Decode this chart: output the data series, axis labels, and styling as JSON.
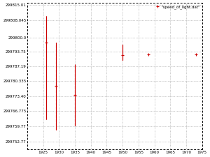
{
  "legend_label": "\"speed_of_light.dat\"",
  "x_data": [
    1926,
    1929,
    1935,
    1950,
    1958,
    1973
  ],
  "y_data": [
    299798,
    299778,
    299774,
    299792,
    299792.5,
    299792.5
  ],
  "y_err_low": [
    35,
    20,
    14,
    2,
    0.1,
    0.1
  ],
  "y_err_high": [
    12,
    20,
    14,
    5,
    0.1,
    0.1
  ],
  "y_err_dashed": [
    true,
    true,
    true,
    false,
    false,
    false
  ],
  "xmin": 1920,
  "xmax": 1975,
  "ymin": 299749,
  "ymax": 299816,
  "ytick_vals": [
    299815.01,
    299808.045,
    299800.0,
    299793.75,
    299787.19,
    299780.335,
    299773.4,
    299766.775,
    299759.77,
    299752.77
  ],
  "ytick_labels": [
    "299815.01",
    "299808.045",
    "299800.0",
    "299793.75",
    "299787.19",
    "299780.335",
    "299773.40",
    "299766.775",
    "299759.77",
    "299752.77"
  ],
  "xtick_vals": [
    1925,
    1930,
    1935,
    1940,
    1945,
    1950,
    1955,
    1960,
    1965,
    1970,
    1975
  ],
  "point_color": "#cc0000",
  "bg_color": "#ffffff",
  "grid_color": "#999999",
  "border_color": "#000000"
}
